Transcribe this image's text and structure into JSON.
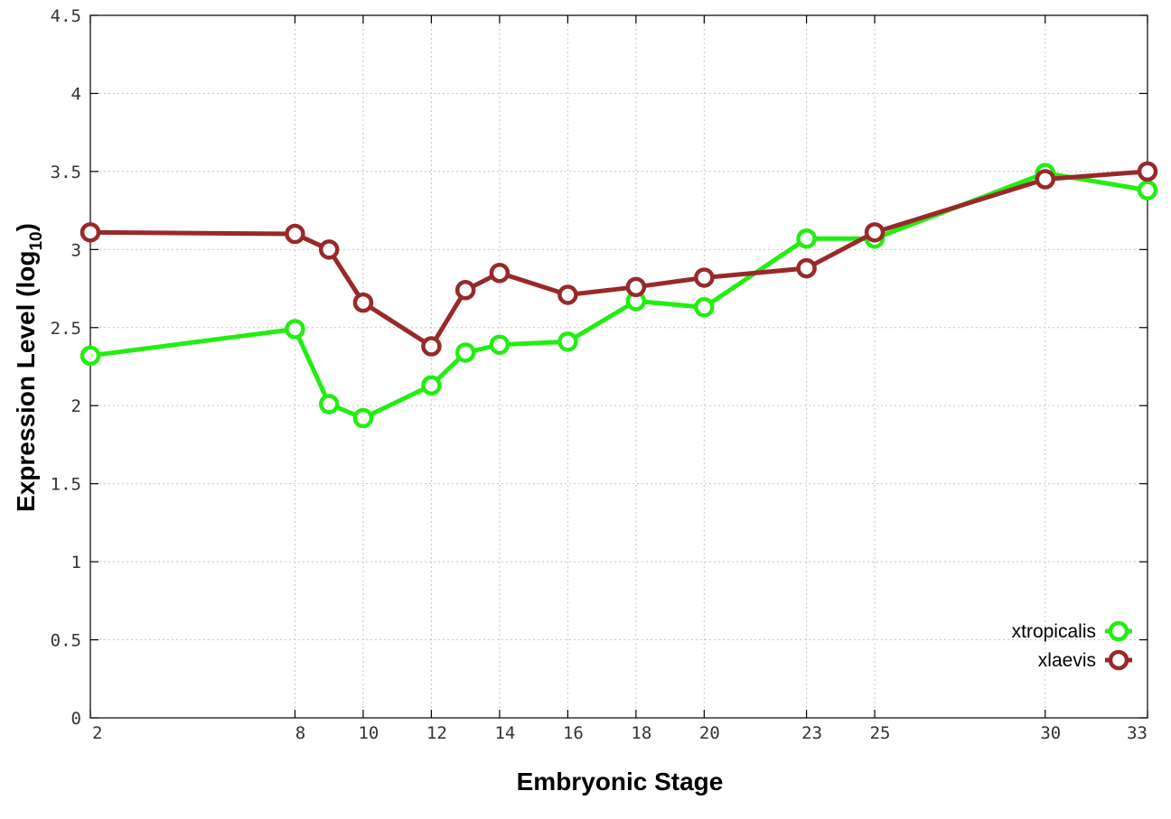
{
  "chart_data": {
    "type": "line",
    "xlabel": "Embryonic Stage",
    "ylabel": "Expression Level (log",
    "ylabel_sub": "10",
    "ylabel_close": ")",
    "x_ticks": [
      2,
      8,
      10,
      12,
      14,
      16,
      18,
      20,
      23,
      25,
      30,
      33
    ],
    "y_ticks": [
      "0",
      "0.5",
      "1",
      "1.5",
      "2",
      "2.5",
      "3",
      "3.5",
      "4",
      "4.5"
    ],
    "xlim": [
      2,
      33
    ],
    "ylim": [
      0,
      4.5
    ],
    "grid": true,
    "legend_position": "bottom-right",
    "series": [
      {
        "name": "xtropicalis",
        "color": "#22ee11",
        "x": [
          2,
          8,
          9,
          10,
          12,
          13,
          14,
          16,
          18,
          20,
          23,
          25,
          30,
          33
        ],
        "values": [
          2.32,
          2.49,
          2.01,
          1.92,
          2.13,
          2.34,
          2.39,
          2.41,
          2.67,
          2.63,
          3.07,
          3.07,
          3.49,
          3.38
        ]
      },
      {
        "name": "xlaevis",
        "color": "#992929",
        "x": [
          2,
          8,
          9,
          10,
          12,
          13,
          14,
          16,
          18,
          20,
          23,
          25,
          30,
          33
        ],
        "values": [
          3.11,
          3.1,
          3.0,
          2.66,
          2.38,
          2.74,
          2.85,
          2.71,
          2.76,
          2.82,
          2.88,
          3.11,
          3.45,
          3.5
        ]
      }
    ]
  }
}
